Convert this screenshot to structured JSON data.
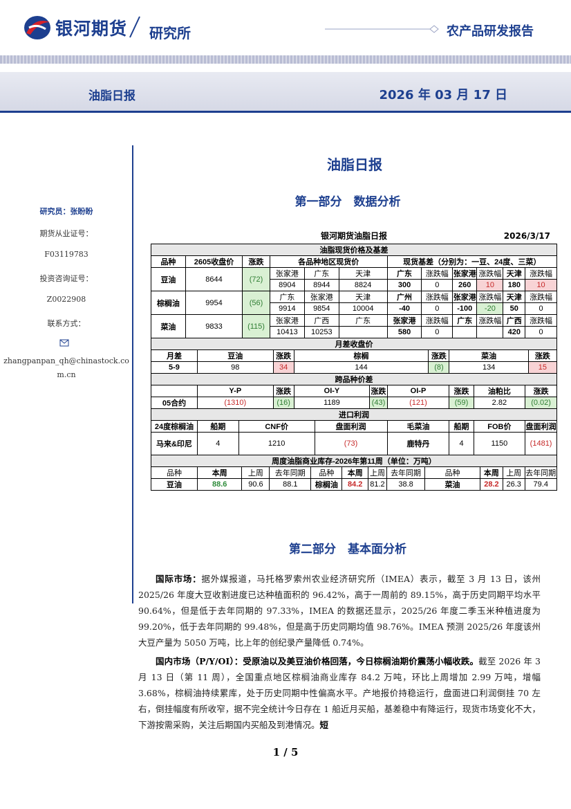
{
  "header": {
    "brand": "银河期货",
    "dept": "研究所",
    "category": "农产品研发报告"
  },
  "banner": {
    "title": "油脂日报",
    "date": "2026 年 03 月 17 日"
  },
  "sidebar": {
    "researcher": "研究员：张盼盼",
    "license_label": "期货从业证号：",
    "license": "F03119783",
    "advisory_label": "投资咨询证号：",
    "advisory": "Z0022908",
    "contact_label": "联系方式：",
    "email": "zhangpanpan_qh@chinastock.com.cn"
  },
  "main_title": "油脂日报",
  "part1": "第一部分　数据分析",
  "table": {
    "title": "银河期货油脂日报",
    "date": "2026/3/17",
    "sections": [
      {
        "title": "油脂现货价格及基差",
        "rows": [
          [
            "品种",
            "2605收盘价",
            "涨跌",
            "各品种地区现货价",
            "现货基差（分别为：一豆、24度、三菜）"
          ],
          [
            "豆油",
            "8644",
            "(72)",
            "张家港",
            "广东",
            "天津",
            "广东",
            "涨跌幅",
            "张家港",
            "涨跌幅",
            "天津",
            "涨跌幅"
          ],
          [
            "8904",
            "8944",
            "8824",
            "300",
            "0",
            "260",
            "10",
            "180",
            "10"
          ],
          [
            "棕榈油",
            "9954",
            "(56)",
            "广东",
            "张家港",
            "天津",
            "广州",
            "涨跌幅",
            "张家港",
            "涨跌幅",
            "天津",
            "涨跌幅"
          ],
          [
            "9914",
            "9854",
            "10004",
            "-40",
            "0",
            "-100",
            "-20",
            "50",
            "0"
          ],
          [
            "菜油",
            "9833",
            "(115)",
            "张家港",
            "广西",
            "广东",
            "张家港",
            "涨跌幅",
            "广东",
            "涨跌幅",
            "广西",
            "涨跌幅"
          ],
          [
            "10413",
            "10253",
            null,
            "580",
            "0",
            null,
            null,
            "420",
            "0"
          ]
        ]
      },
      {
        "title": "月差收盘价",
        "rows": [
          [
            "月差",
            "豆油",
            "涨跌",
            "棕榈",
            "涨跌",
            "菜油",
            "涨跌"
          ],
          [
            "5-9",
            "98",
            "34",
            "144",
            "(8)",
            "134",
            "15"
          ]
        ]
      },
      {
        "title": "跨品种价差",
        "rows": [
          [
            null,
            "Y-P",
            "涨跌",
            "OI-Y",
            "涨跌",
            "OI-P",
            "涨跌",
            "油粕比",
            "涨跌"
          ],
          [
            "05合约",
            "(1310)",
            "(16)",
            "1189",
            "(43)",
            "(121)",
            "(59)",
            "2.82",
            "(0.02)"
          ]
        ]
      },
      {
        "title": "进口利润",
        "rows": [
          [
            "24度棕榈油",
            "船期",
            "CNF价",
            "盘面利润",
            "毛菜油",
            "船期",
            "FOB价",
            "盘面利润"
          ],
          [
            "马来&印尼",
            "4",
            "1210",
            "(73)",
            "鹿特丹",
            "4",
            "1150",
            "(1481)"
          ]
        ]
      },
      {
        "title": "周度油脂商业库存-2026年第11周（单位：万吨）",
        "rows": [
          [
            "品种",
            "本周",
            "上周",
            "去年同期",
            "品种",
            "本周",
            "上周",
            "去年同期",
            "品种",
            "本周",
            "上周",
            "去年同期"
          ],
          [
            "豆油",
            "88.6",
            "90.6",
            "88.1",
            "棕榈油",
            "84.2",
            "81.2",
            "38.8",
            "菜油",
            "28.2",
            "26.3",
            "79.4"
          ]
        ]
      }
    ]
  },
  "part2": "第二部分　基本面分析",
  "paragraphs": [
    {
      "lead": "国际市场：",
      "body": "据外媒报道，马托格罗索州农业经济研究所（IMEA）表示，截至 3 月 13 日，该州 2025/26 年度大豆收割进度已达种植面积的 96.42%，高于一周前的 89.15%，高于历史同期平均水平 90.64%，但是低于去年同期的 97.33%，IMEA 的数据还显示，2025/26 年度二季玉米种植进度为 99.20%，低于去年同期的 99.48%，但是高于历史同期均值 98.76%。IMEA 预测 2025/26 年度该州大豆产量为 5050 万吨，比上年的创纪录产量降低 0.74%。"
    },
    {
      "lead": "国内市场（P/Y/OI）：受原油以及美豆油价格回落，今日棕榈油期价震荡小幅收跌。",
      "body": "截至 2026 年 3 月 13 日（第 11 周），全国重点地区棕榈油商业库存 84.2 万吨，环比上周增加 2.99 万吨，增幅 3.68%，棕榈油持续累库，处于历史同期中性偏高水平。产地报价持稳运行，盘面进口利润倒挂 70 左右，倒挂幅度有所收窄，据不完全统计今日存在 1 船近月买船，基差稳中有降运行，现货市场变化不大，下游按需采购，关注后期国内买船及到港情况。",
      "tail": "短"
    }
  ],
  "footer": {
    "page": "1 / 5"
  }
}
